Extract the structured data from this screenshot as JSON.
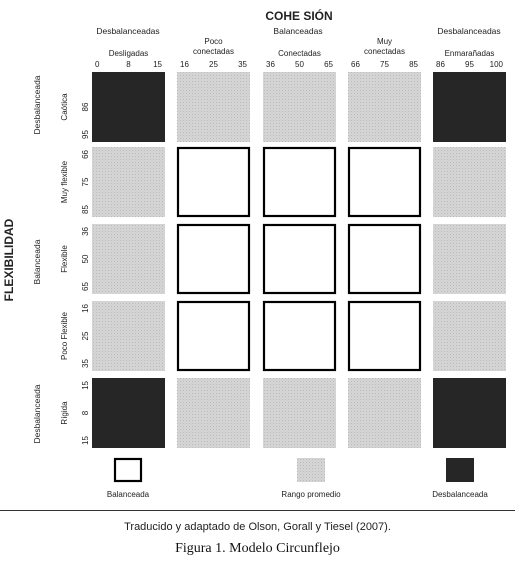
{
  "colors": {
    "balanced": "#ffffff",
    "average": "#cfcfcf",
    "unbalanced": "#262626",
    "text": "#222222"
  },
  "diagram": {
    "x_axis_title": "COHE SIÓN",
    "y_axis_title": "FLEXIBILIDAD",
    "x_groups": [
      "Desbalanceadas",
      "Balanceadas",
      "Desbalanceadas"
    ],
    "cohesion_levels": [
      {
        "label": "Desligadas",
        "ticks": [
          "0",
          "8",
          "15"
        ]
      },
      {
        "label": "Poco conectadas",
        "ticks": [
          "16",
          "25",
          "35"
        ]
      },
      {
        "label": "Conectadas",
        "ticks": [
          "36",
          "50",
          "65"
        ]
      },
      {
        "label": "Muy conectadas",
        "ticks": [
          "66",
          "75",
          "85"
        ]
      },
      {
        "label": "Enmarañadas",
        "ticks": [
          "86",
          "95",
          "100"
        ]
      }
    ],
    "y_groups": [
      "Desbalanceada",
      "Balanceada",
      "Desbalanceada"
    ],
    "flexibility_levels": [
      {
        "label": "Caótica",
        "ticks": [
          "86",
          "95"
        ]
      },
      {
        "label": "Muy flexible",
        "ticks": [
          "66",
          "75",
          "85"
        ]
      },
      {
        "label": "Flexible",
        "ticks": [
          "36",
          "50",
          "65"
        ]
      },
      {
        "label": "Poco Flexible",
        "ticks": [
          "16",
          "25",
          "35"
        ]
      },
      {
        "label": "Rígida",
        "ticks": [
          "15",
          "8",
          "15"
        ]
      }
    ],
    "cells": [
      [
        "unbalanced",
        "average",
        "average",
        "average",
        "unbalanced"
      ],
      [
        "average",
        "balanced",
        "balanced",
        "balanced",
        "average"
      ],
      [
        "average",
        "balanced",
        "balanced",
        "balanced",
        "average"
      ],
      [
        "average",
        "balanced",
        "balanced",
        "balanced",
        "average"
      ],
      [
        "unbalanced",
        "average",
        "average",
        "average",
        "unbalanced"
      ]
    ],
    "legend": [
      {
        "type": "balanced",
        "label": "Balanceada"
      },
      {
        "type": "average",
        "label": "Rango promedio"
      },
      {
        "type": "unbalanced",
        "label": "Desbalanceada"
      }
    ]
  },
  "source_note": "Traducido y adaptado de Olson, Gorall y Tiesel (2007).",
  "figure_title": "Figura 1. Modelo Circunflejo"
}
